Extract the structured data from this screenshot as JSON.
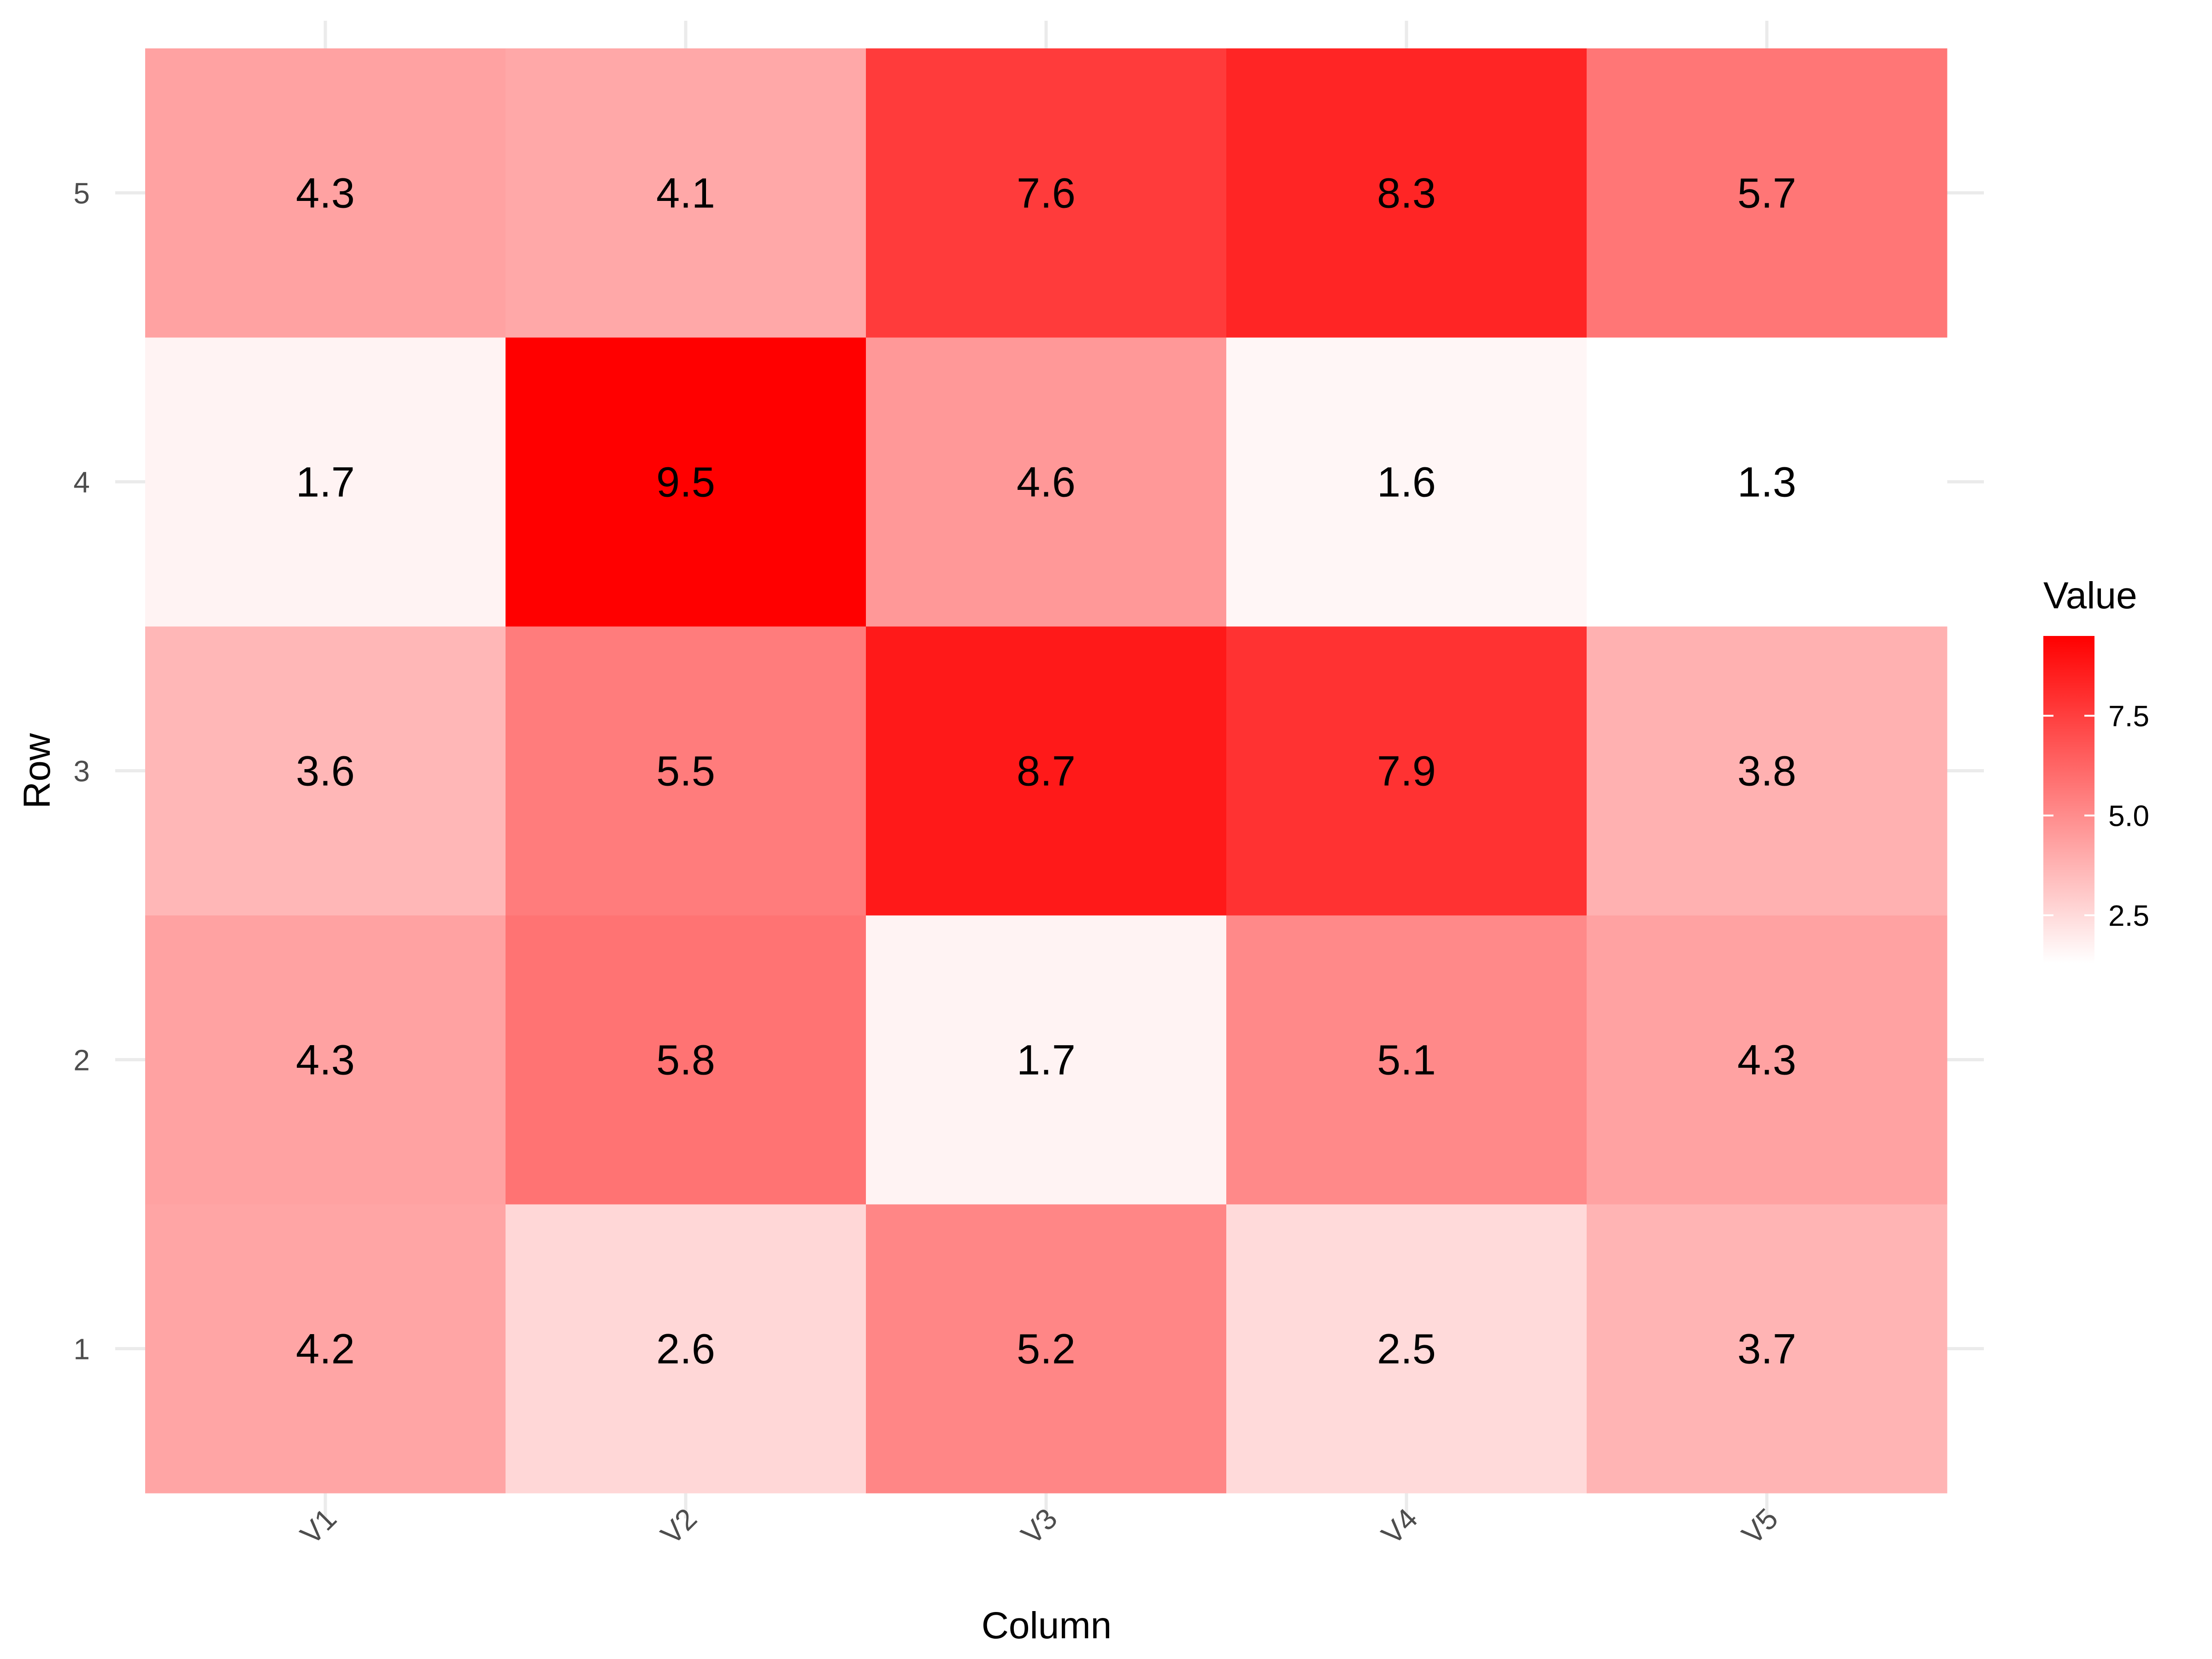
{
  "chart_data": {
    "type": "heatmap",
    "title": "",
    "xlabel": "Column",
    "ylabel": "Row",
    "x_categories": [
      "V1",
      "V2",
      "V3",
      "V4",
      "V5"
    ],
    "y_categories": [
      "1",
      "2",
      "3",
      "4",
      "5"
    ],
    "values": [
      [
        4.2,
        2.6,
        5.2,
        2.5,
        3.7
      ],
      [
        4.3,
        5.8,
        1.7,
        5.1,
        4.3
      ],
      [
        3.6,
        5.5,
        8.7,
        7.9,
        3.8
      ],
      [
        1.7,
        9.5,
        4.6,
        1.6,
        1.3
      ],
      [
        4.3,
        4.1,
        7.6,
        8.3,
        5.7
      ]
    ],
    "legend": {
      "title": "Value",
      "position": "right",
      "ticks": [
        2.5,
        5.0,
        7.5
      ],
      "tick_labels": [
        "2.5",
        "5.0",
        "7.5"
      ],
      "range": [
        1.3,
        9.5
      ]
    },
    "color_low": "#ffffff",
    "color_high": "#ff0000",
    "grid": true
  }
}
